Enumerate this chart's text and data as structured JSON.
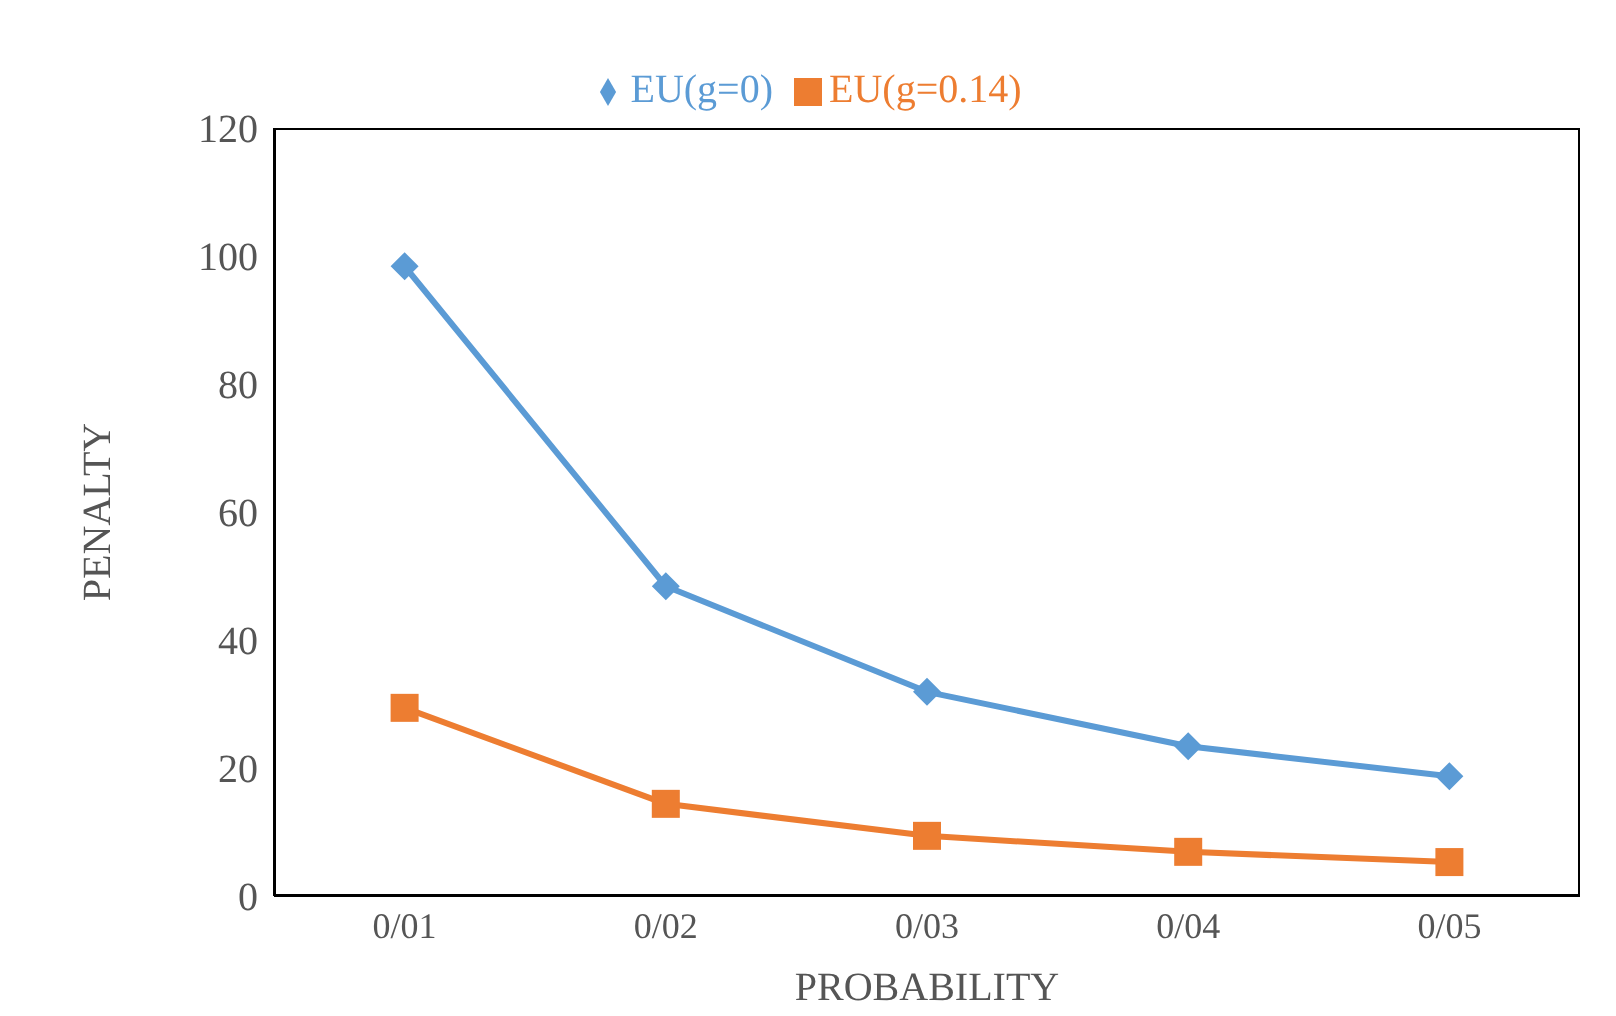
{
  "chart_data": {
    "type": "line",
    "xlabel": "PROBABILITY",
    "ylabel": "PENALTY",
    "categories": [
      "0/01",
      "0/02",
      "0/03",
      "0/04",
      "0/05"
    ],
    "series": [
      {
        "name": "EU(g=0)",
        "color": "#5b9bd5",
        "marker": "diamond",
        "values": [
          98.4,
          48.4,
          31.9,
          23.4,
          18.7
        ]
      },
      {
        "name": "EU(g=0.14)",
        "color": "#ed7d31",
        "marker": "square",
        "values": [
          29.4,
          14.4,
          9.4,
          6.9,
          5.3
        ]
      }
    ],
    "ylim": [
      0,
      120
    ],
    "yticks": [
      0,
      20,
      40,
      60,
      80,
      100,
      120
    ],
    "legend": "top",
    "line_style": "solid"
  }
}
